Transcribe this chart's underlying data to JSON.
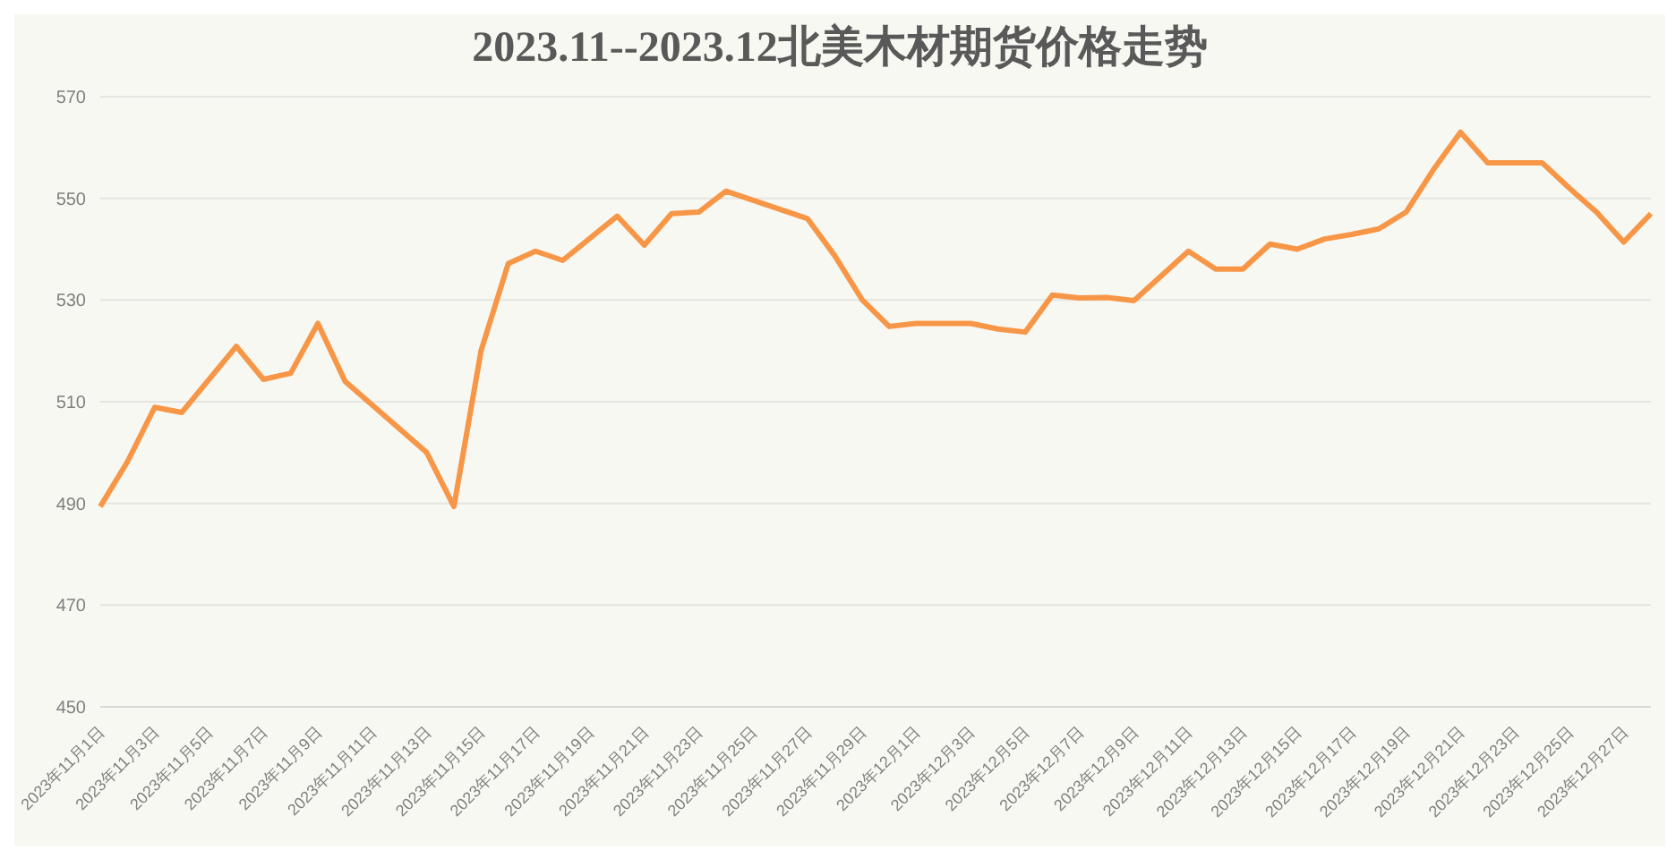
{
  "chart_data": {
    "type": "line",
    "title": "2023.11--2023.12北美木材期货价格走势",
    "categories": [
      "2023年11月1日",
      null,
      "2023年11月3日",
      null,
      "2023年11月5日",
      null,
      "2023年11月7日",
      null,
      "2023年11月9日",
      null,
      "2023年11月11日",
      null,
      "2023年11月13日",
      null,
      "2023年11月15日",
      null,
      "2023年11月17日",
      null,
      "2023年11月19日",
      null,
      "2023年11月21日",
      null,
      "2023年11月23日",
      null,
      "2023年11月25日",
      null,
      "2023年11月27日",
      null,
      "2023年11月29日",
      null,
      "2023年12月1日",
      null,
      "2023年12月3日",
      null,
      "2023年12月5日",
      null,
      "2023年12月7日",
      null,
      "2023年12月9日",
      null,
      "2023年12月11日",
      null,
      "2023年12月13日",
      null,
      "2023年12月15日",
      null,
      "2023年12月17日",
      null,
      "2023年12月19日",
      null,
      "2023年12月21日",
      null,
      "2023年12月23日",
      null,
      "2023年12月25日",
      null,
      "2023年12月27日",
      null
    ],
    "series": [
      {
        "color": "#f79646",
        "values": [
          489.4,
          498.2,
          508.9,
          507.9,
          null,
          520.9,
          514.4,
          515.6,
          525.4,
          514,
          null,
          null,
          500,
          489.4,
          520.1,
          537.2,
          539.6,
          537.8,
          null,
          546.5,
          540.8,
          547,
          547.3,
          551.4,
          null,
          null,
          546,
          538.7,
          530.1,
          524.8,
          525.4,
          null,
          525.4,
          524.3,
          523.7,
          531,
          530.4,
          530.5,
          529.9,
          null,
          539.6,
          536.1,
          536.1,
          541,
          540,
          542,
          542.9,
          544,
          547.3,
          555.6,
          563,
          557,
          557,
          557,
          552,
          547.3,
          541.4,
          547
        ]
      }
    ],
    "ylim": [
      450,
      570
    ],
    "yticks": [
      450,
      470,
      490,
      510,
      530,
      550,
      570
    ],
    "grid": "y",
    "marker": "none",
    "line_style": "solid",
    "legend": false
  }
}
